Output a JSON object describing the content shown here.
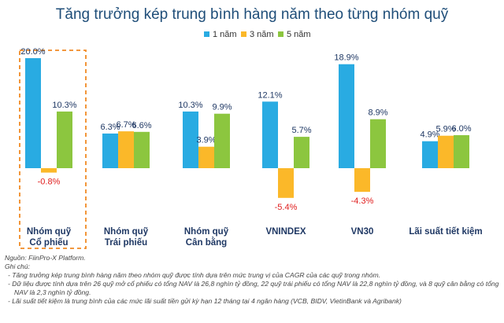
{
  "chart_data": {
    "type": "bar",
    "title": "Tăng trưởng kép trung bình hàng năm theo từng nhóm quỹ",
    "categories": [
      [
        "Nhóm quỹ",
        "Cổ phiếu"
      ],
      [
        "Nhóm quỹ",
        "Trái phiếu"
      ],
      [
        "Nhóm quỹ",
        "Cân bằng"
      ],
      [
        "VNINDEX"
      ],
      [
        "VN30"
      ],
      [
        "Lãi suất tiết kiệm"
      ]
    ],
    "series": [
      {
        "name": "1 năm",
        "color": "#29abe2",
        "values": [
          20.0,
          6.3,
          10.3,
          12.1,
          18.9,
          4.9
        ],
        "labels": [
          "20.0%",
          "6.3%",
          "10.3%",
          "12.1%",
          "18.9%",
          "4.9%"
        ]
      },
      {
        "name": "3 năm",
        "color": "#fbb829",
        "values": [
          -0.8,
          6.7,
          3.9,
          -5.4,
          -4.3,
          5.9
        ],
        "labels": [
          "-0.8%",
          "6.7%",
          "3.9%",
          "-5.4%",
          "-4.3%",
          "5.9%"
        ]
      },
      {
        "name": "5 năm",
        "color": "#8cc63f",
        "values": [
          10.3,
          6.6,
          9.9,
          5.7,
          8.9,
          6.0
        ],
        "labels": [
          "10.3%",
          "6.6%",
          "9.9%",
          "5.7%",
          "8.9%",
          "6.0%"
        ]
      }
    ],
    "ylim": [
      -8,
      22
    ],
    "legend": "top-center",
    "grid": false,
    "highlight_category": 0,
    "highlight_color": "#f08a24"
  },
  "notes": {
    "source": "Nguồn: FiinPro-X Platform.",
    "heading": "Ghi chú:",
    "items": [
      "Tăng trưởng kép trung bình hàng năm theo nhóm quỹ được tính dựa trên mức trung vị của CAGR của các quỹ trong nhóm.",
      "Dữ liệu được tính dựa trên 26 quỹ mở cổ phiếu có tổng NAV là 26,8 nghìn tỷ đồng, 22 quỹ trái phiếu có tổng NAV là 22,8 nghìn tỷ đồng, và 8 quỹ cân bằng có tổng NAV là 2,3 nghìn tỷ đồng.",
      "Lãi suất tiết kiệm là trung bình của các mức lãi suất tiền gửi kỳ hạn 12 tháng tại 4 ngân hàng (VCB, BIDV, VietinBank và Agribank)"
    ]
  }
}
